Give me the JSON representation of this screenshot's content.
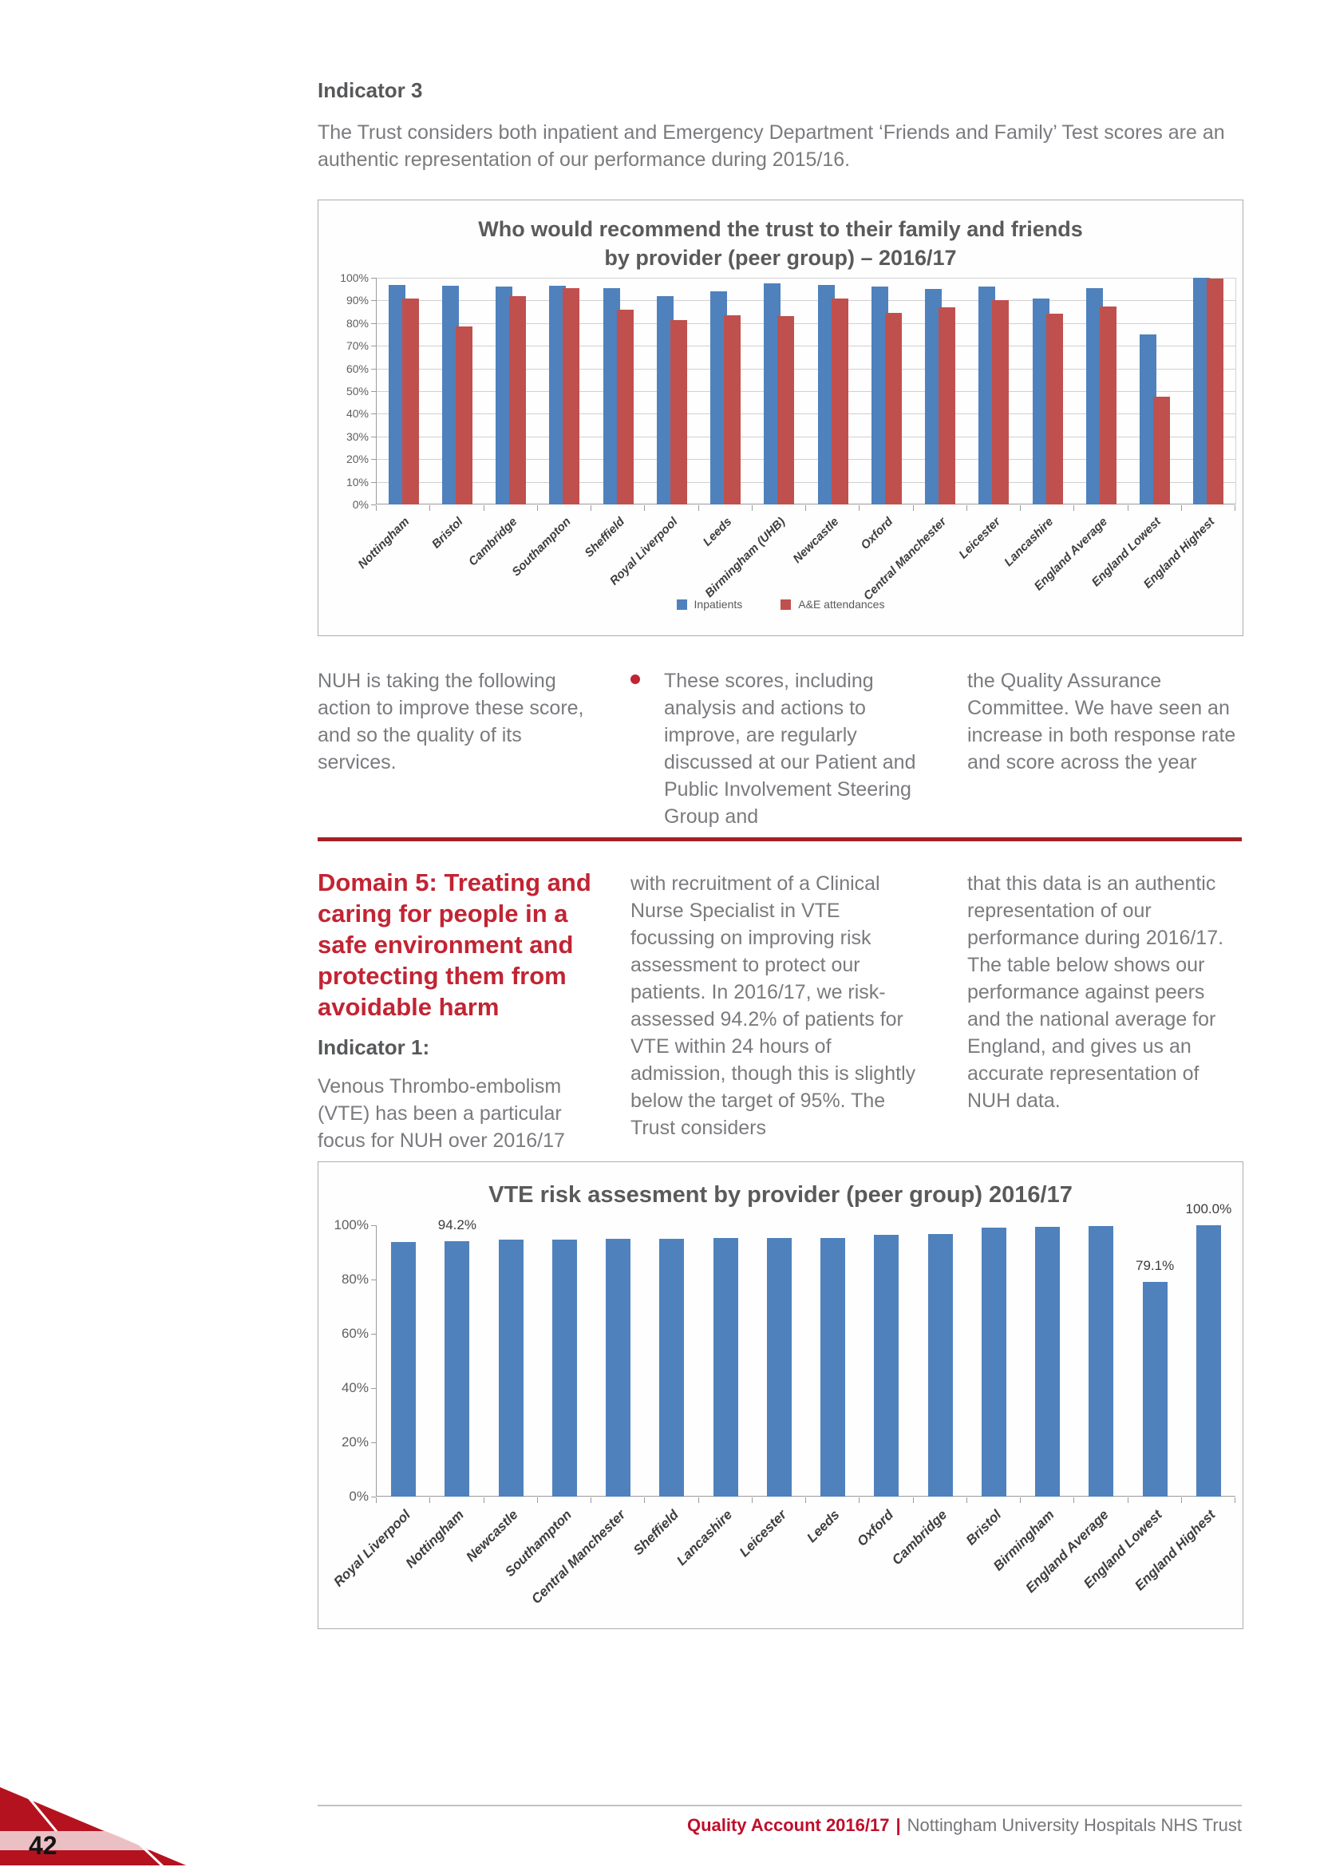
{
  "page": {
    "number": "42",
    "footer": {
      "brand": "Quality Account 2016/17",
      "separator": "|",
      "org": "Nottingham University Hospitals NHS Trust"
    }
  },
  "indicator3": {
    "heading": "Indicator 3",
    "intro": "The Trust considers both inpatient and Emergency Department ‘Friends and Family’ Test scores are an authentic representation of our performance during 2015/16."
  },
  "actions": {
    "col1": "NUH is taking the following action to improve these score, and so the quality of its services.",
    "bullet": "•",
    "col2": "These scores, including analysis and actions to improve, are regularly discussed at our Patient and Public Involvement Steering Group and",
    "col3": "the Quality Assurance Committee. We have seen an increase in both response rate and score across the year"
  },
  "domain5": {
    "heading": "Domain 5: Treating and caring for people in a safe environment and protecting them from avoidable harm",
    "indicator1_label": "Indicator 1:",
    "col1": "Venous Thrombo-embolism (VTE) has been a particular focus for NUH over 2016/17",
    "col2": "with recruitment of a Clinical Nurse Specialist in VTE focussing on improving risk assessment to protect our patients. In 2016/17, we risk-assessed 94.2% of patients for VTE within 24 hours of admission, though this is slightly below the target of 95%. The Trust considers",
    "col3": "that this data is an authentic representation of our performance during 2016/17. The table below shows our performance against peers and the national average for England, and gives us an accurate representation of NUH data."
  },
  "chart_data": [
    {
      "type": "bar",
      "title": "Who would recommend the trust to their family and friends by provider (peer group) – 2016/17",
      "categories": [
        "Nottingham",
        "Bristol",
        "Cambridge",
        "Southampton",
        "Sheffield",
        "Royal Liverpool",
        "Leeds",
        "Birmingham (UHB)",
        "Newcastle",
        "Oxford",
        "Central Manchester",
        "Leicester",
        "Lancashire",
        "England Average",
        "England Lowest",
        "England Highest"
      ],
      "series": [
        {
          "name": "Inpatients",
          "color": "#4f81bd",
          "values": [
            97,
            96.5,
            96,
            96.5,
            95.5,
            92,
            94,
            97.5,
            97,
            96,
            95,
            96,
            91,
            95.5,
            75,
            100
          ]
        },
        {
          "name": "A&E attendances",
          "color": "#c0504d",
          "values": [
            91,
            78.5,
            92,
            95.5,
            86,
            81.5,
            83.5,
            83,
            91,
            84.5,
            87,
            90,
            84,
            87.5,
            47.5,
            99.5
          ]
        }
      ],
      "ylim": [
        0,
        100
      ],
      "yticks": [
        "100%",
        "90%",
        "80%",
        "70%",
        "60%",
        "50%",
        "40%",
        "30%",
        "20%",
        "10%",
        "0%"
      ],
      "grid": true,
      "legend_position": "bottom"
    },
    {
      "type": "bar",
      "title": "VTE risk assesment by provider (peer group) 2016/17",
      "categories": [
        "Royal Liverpool",
        "Nottingham",
        "Newcastle",
        "Southampton",
        "Central Manchester",
        "Sheffield",
        "Lancashire",
        "Leicester",
        "Leeds",
        "Oxford",
        "Cambridge",
        "Bristol",
        "Birmingham",
        "England Average",
        "England Lowest",
        "England Highest"
      ],
      "values": [
        93.7,
        94.2,
        94.8,
        94.8,
        95.0,
        95.0,
        95.4,
        95.4,
        95.3,
        96.4,
        96.7,
        99.0,
        99.4,
        99.8,
        79.1,
        100.0
      ],
      "bar_color": "#4f81bd",
      "ylim": [
        0,
        100
      ],
      "yticks": [
        "100%",
        "80%",
        "60%",
        "40%",
        "20%",
        "0%"
      ],
      "grid": false,
      "data_labels": [
        {
          "index": 1,
          "text": "94.2%"
        },
        {
          "index": 14,
          "text": "79.1%"
        },
        {
          "index": 15,
          "text": "100.0%"
        }
      ]
    }
  ],
  "colors": {
    "bar_blue": "#4f81bd",
    "bar_red": "#c0504d",
    "accent_red": "#c22433",
    "rule_red": "#a32125",
    "corner_dark_red": "#b5121f",
    "corner_pink": "#eac0c4",
    "body_gray": "#7a7b7e",
    "heading_gray": "#57585a"
  }
}
